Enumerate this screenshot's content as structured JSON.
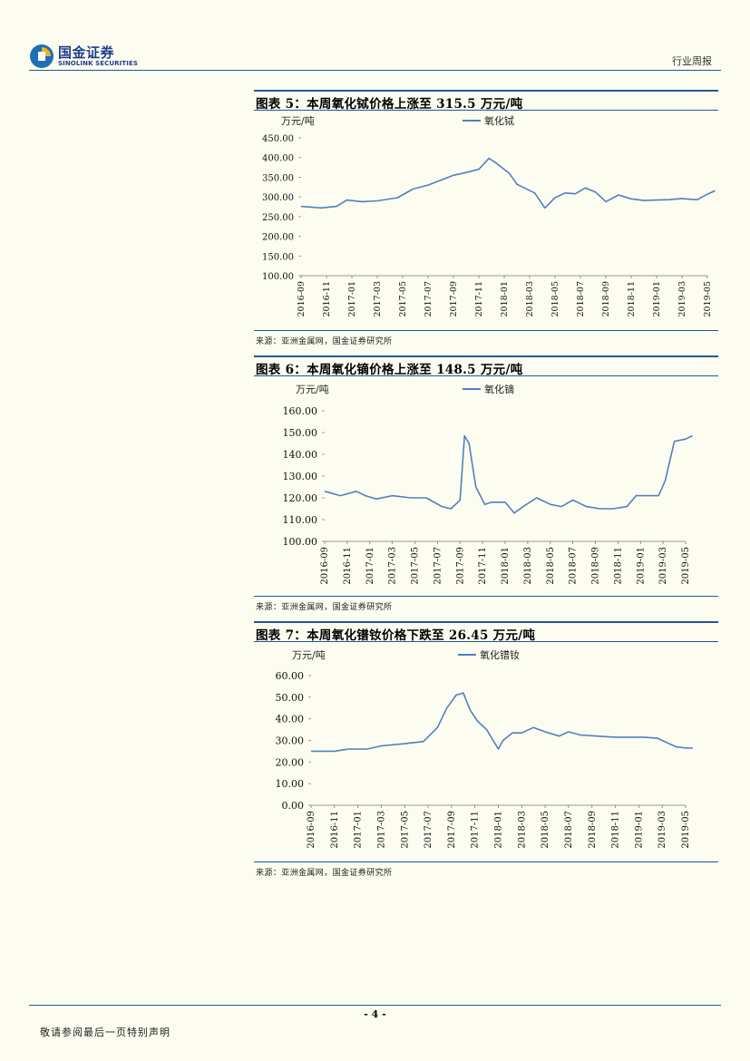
{
  "header": {
    "company_cn": "国金证券",
    "company_en": "SINOLINK SECURITIES",
    "report_type": "行业周报"
  },
  "charts": [
    {
      "title": "图表 5：本周氧化铽价格上涨至 315.5 万元/吨",
      "source": "来源：亚洲金属网，国金证券研究所",
      "unit_label": "万元/吨",
      "legend": "氧化铽"
    },
    {
      "title": "图表 6：本周氧化镝价格上涨至 148.5 万元/吨",
      "source": "来源：亚洲金属网，国金证券研究所",
      "unit_label": "万元/吨",
      "legend": "氧化镝"
    },
    {
      "title": "图表 7：本周氧化镨钕价格下跌至 26.45 万元/吨",
      "source": "来源：亚洲金属网，国金证券研究所",
      "unit_label": "万元/吨",
      "legend": "氧化镨钕"
    }
  ],
  "chart_data": [
    {
      "type": "line",
      "title": "图表 5：本周氧化铽价格上涨至 315.5 万元/吨",
      "ylabel": "万元/吨",
      "ylim": [
        100,
        450
      ],
      "yticks": [
        "450.00",
        "400.00",
        "350.00",
        "300.00",
        "250.00",
        "200.00",
        "150.00",
        "100.00"
      ],
      "xticks": [
        "2016-09",
        "2016-11",
        "2017-01",
        "2017-03",
        "2017-05",
        "2017-07",
        "2017-09",
        "2017-11",
        "2018-01",
        "2018-03",
        "2018-05",
        "2018-07",
        "2018-09",
        "2018-11",
        "2019-01",
        "2019-03",
        "2019-05"
      ],
      "series": [
        {
          "name": "氧化铽",
          "color": "#4f81bd",
          "x": [
            0,
            0.8,
            1.4,
            1.8,
            2.4,
            3.0,
            3.8,
            4.4,
            5.0,
            5.6,
            6.0,
            6.5,
            7.0,
            7.4,
            7.7,
            8.2,
            8.5,
            9.2,
            9.6,
            10.0,
            10.4,
            10.8,
            11.2,
            11.6,
            12.0,
            12.5,
            13.0,
            13.5,
            14.0,
            14.5,
            15.0,
            15.3,
            15.6,
            16.0,
            16.3
          ],
          "values": [
            276,
            272,
            276,
            292,
            288,
            290,
            298,
            320,
            330,
            345,
            355,
            362,
            370,
            398,
            385,
            360,
            332,
            310,
            272,
            298,
            310,
            308,
            323,
            312,
            288,
            305,
            295,
            291,
            292,
            293,
            296,
            294,
            293,
            307,
            315.5
          ]
        }
      ]
    },
    {
      "type": "line",
      "title": "图表 6：本周氧化镝价格上涨至 148.5 万元/吨",
      "ylabel": "万元/吨",
      "ylim": [
        100,
        160
      ],
      "yticks": [
        "160.00",
        "150.00",
        "140.00",
        "130.00",
        "120.00",
        "110.00",
        "100.00"
      ],
      "xticks": [
        "2016-09",
        "2016-11",
        "2017-01",
        "2017-03",
        "2017-05",
        "2017-07",
        "2017-09",
        "2017-11",
        "2018-01",
        "2018-03",
        "2018-05",
        "2018-07",
        "2018-09",
        "2018-11",
        "2019-01",
        "2019-03",
        "2019-05"
      ],
      "series": [
        {
          "name": "氧化镝",
          "color": "#4f81bd",
          "x": [
            0,
            0.7,
            1.4,
            1.8,
            2.3,
            3.0,
            3.8,
            4.5,
            5.2,
            5.6,
            6.0,
            6.2,
            6.4,
            6.7,
            7.1,
            7.4,
            8.0,
            8.4,
            8.8,
            9.4,
            10.0,
            10.5,
            11.0,
            11.6,
            12.2,
            12.8,
            13.4,
            13.8,
            14.4,
            14.8,
            15.1,
            15.5,
            16.0,
            16.3
          ],
          "values": [
            123,
            121,
            123,
            121,
            119.5,
            121,
            120,
            120,
            116,
            115,
            119,
            148.5,
            145,
            125,
            117,
            118,
            118,
            113,
            116,
            120,
            117,
            116,
            119,
            116,
            115,
            115,
            116,
            121,
            121,
            121,
            128,
            146,
            147,
            148.5
          ]
        }
      ]
    },
    {
      "type": "line",
      "title": "图表 7：本周氧化镨钕价格下跌至 26.45 万元/吨",
      "ylabel": "万元/吨",
      "ylim": [
        0,
        60
      ],
      "yticks": [
        "60.00",
        "50.00",
        "40.00",
        "30.00",
        "20.00",
        "10.00",
        "0.00"
      ],
      "xticks": [
        "2016-09",
        "2016-11",
        "2017-01",
        "2017-03",
        "2017-05",
        "2017-07",
        "2017-09",
        "2017-11",
        "2018-01",
        "2018-03",
        "2018-05",
        "2018-07",
        "2018-09",
        "2018-11",
        "2019-01",
        "2019-03",
        "2019-05"
      ],
      "series": [
        {
          "name": "氧化镨钕",
          "color": "#4f81bd",
          "x": [
            0,
            1.0,
            1.6,
            2.4,
            3.0,
            4.0,
            4.8,
            5.4,
            5.8,
            6.2,
            6.5,
            6.8,
            7.1,
            7.5,
            8.0,
            8.2,
            8.6,
            9.0,
            9.5,
            10.0,
            10.6,
            11.0,
            11.5,
            12.2,
            13.0,
            13.6,
            14.2,
            14.8,
            15.2,
            15.6,
            16.0,
            16.3
          ],
          "values": [
            25,
            25,
            26,
            26,
            27.5,
            28.5,
            29.5,
            36,
            45,
            51,
            52,
            44,
            39,
            35,
            26,
            30,
            33.5,
            33.5,
            36,
            34,
            32,
            34,
            32.5,
            32,
            31.5,
            31.5,
            31.5,
            31,
            29,
            27,
            26.5,
            26.45
          ]
        }
      ]
    }
  ],
  "footer": {
    "page_number": "- 4 -",
    "disclaimer": "敬请参阅最后一页特别声明"
  }
}
